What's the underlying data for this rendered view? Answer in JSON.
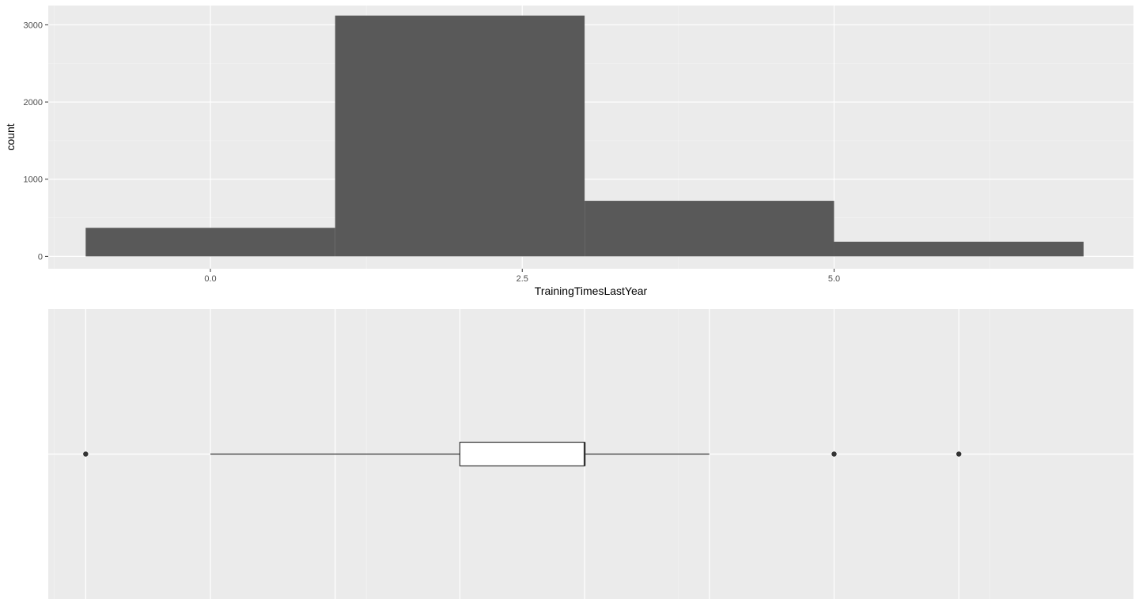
{
  "chart_data": [
    {
      "type": "bar",
      "subtype": "histogram",
      "xlabel": "TrainingTimesLastYear",
      "ylabel": "count",
      "xlim": [
        -1.3,
        7.4
      ],
      "ylim": [
        -160,
        3250
      ],
      "x_ticks": [
        {
          "value": 0,
          "label": "0.0"
        },
        {
          "value": 2.5,
          "label": "2.5"
        },
        {
          "value": 5,
          "label": "5.0"
        }
      ],
      "y_ticks": [
        {
          "value": 0,
          "label": "0"
        },
        {
          "value": 1000,
          "label": "1000"
        },
        {
          "value": 2000,
          "label": "2000"
        },
        {
          "value": 3000,
          "label": "3000"
        }
      ],
      "bins": [
        {
          "x0": -1,
          "x1": 1,
          "count": 370
        },
        {
          "x0": 1,
          "x1": 3,
          "count": 3120
        },
        {
          "x0": 3,
          "x1": 5,
          "count": 720
        },
        {
          "x0": 5,
          "x1": 7,
          "count": 190
        }
      ],
      "bar_color": "#595959",
      "panel_background": "#ebebeb",
      "grid": true
    },
    {
      "type": "boxplot",
      "orientation": "horizontal",
      "xlim": [
        -1.3,
        7.4
      ],
      "x_ticks": [
        0,
        2.5,
        5
      ],
      "stats": {
        "whisker_low": 0,
        "q1": 2,
        "median": 3,
        "q3": 3,
        "whisker_high": 4
      },
      "outliers": [
        -1,
        5,
        6
      ],
      "box_fill": "#ffffff",
      "line_color": "#333333",
      "panel_background": "#ebebeb",
      "grid": true
    }
  ]
}
